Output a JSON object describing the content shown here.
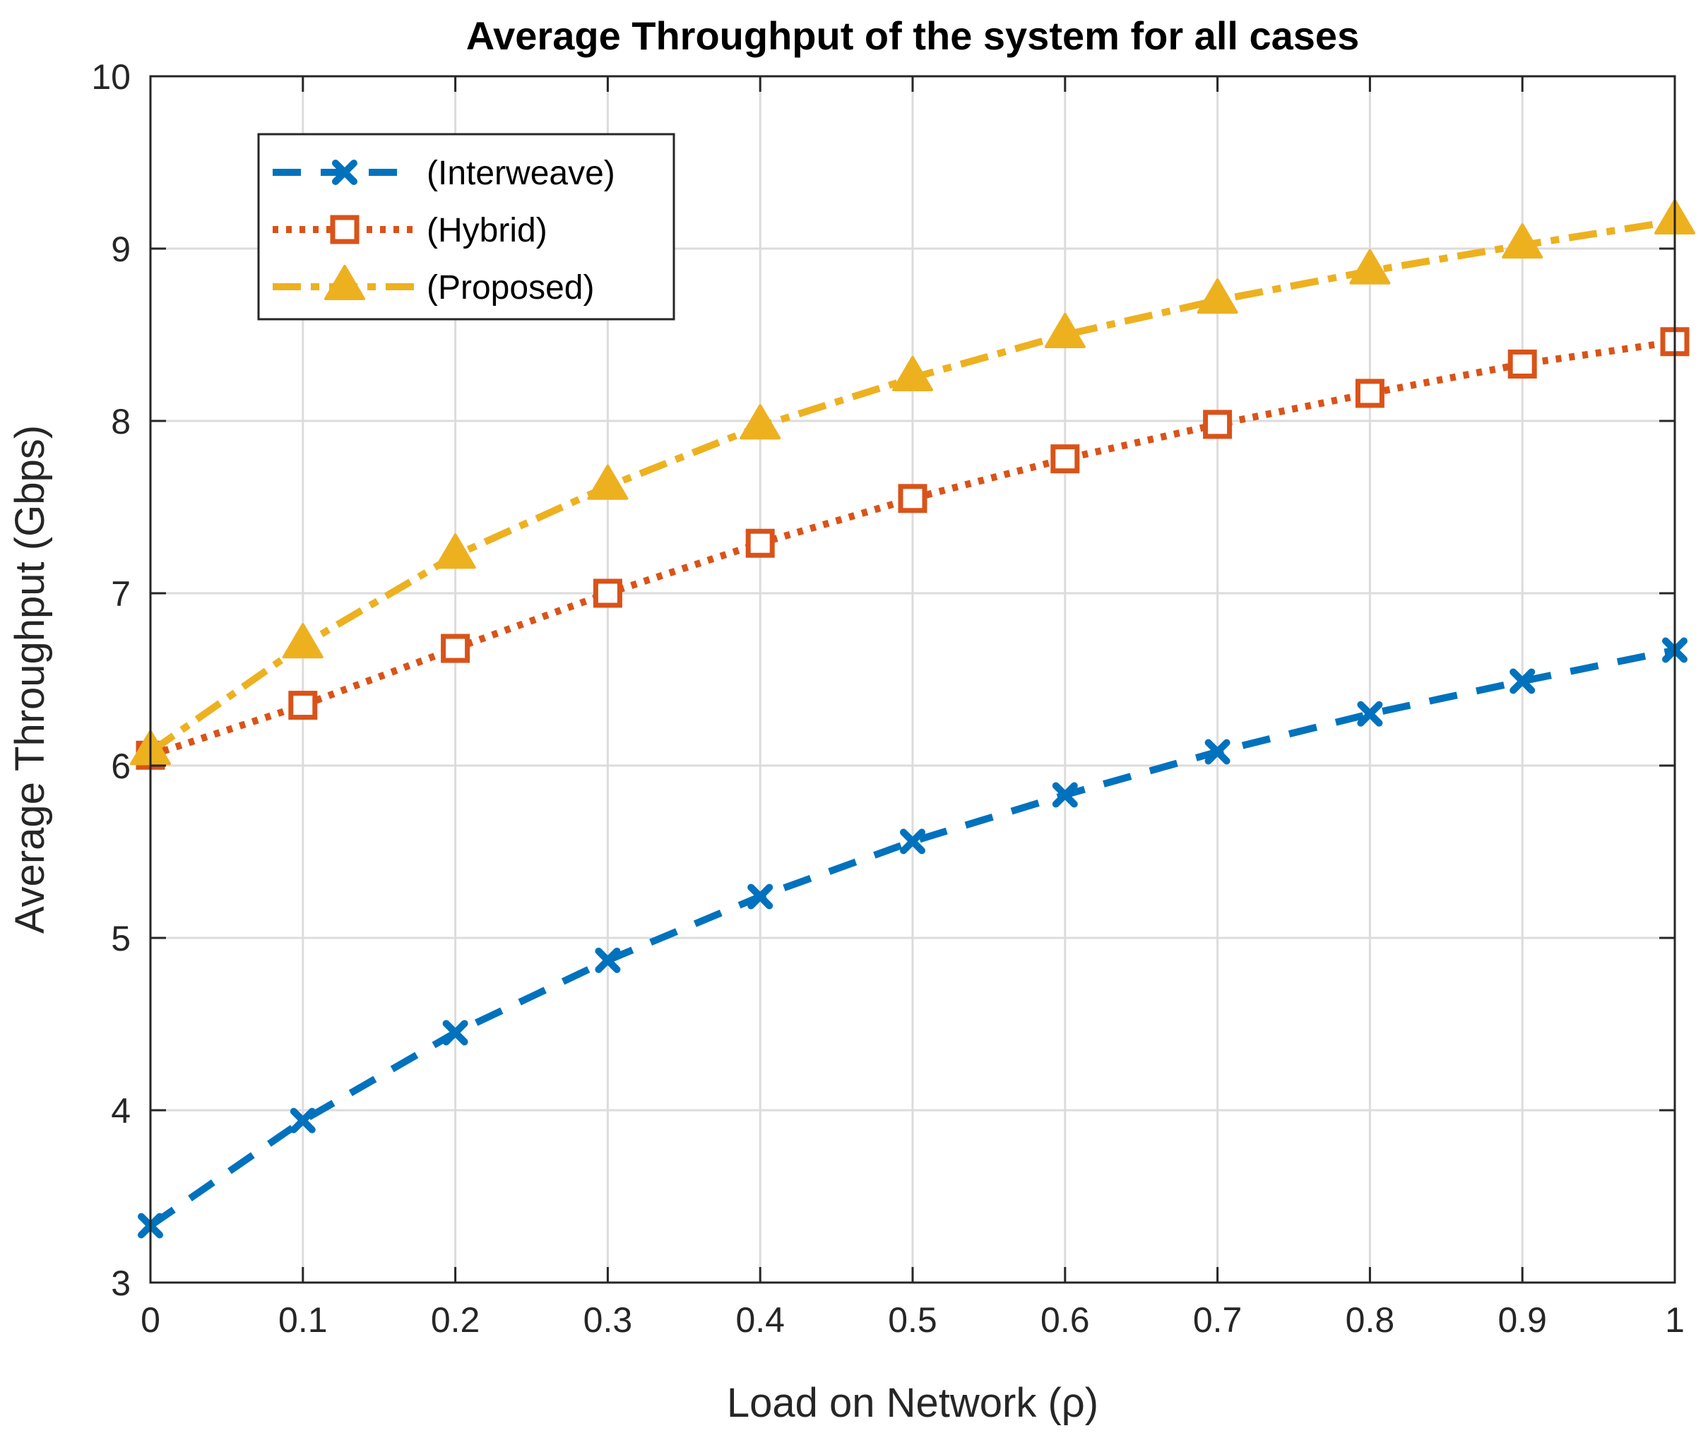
{
  "chart_data": {
    "type": "line",
    "title": "Average Throughput of the system for all cases",
    "xlabel": "Load on Network (ρ)",
    "ylabel": "Average Throughput (Gbps)",
    "xlim": [
      0,
      1
    ],
    "ylim": [
      3,
      10
    ],
    "grid": true,
    "legend_position": "top-left",
    "x": [
      0,
      0.1,
      0.2,
      0.3,
      0.4,
      0.5,
      0.6,
      0.7,
      0.8,
      0.9,
      1
    ],
    "x_tick_labels": [
      "0",
      "0.1",
      "0.2",
      "0.3",
      "0.4",
      "0.5",
      "0.6",
      "0.7",
      "0.8",
      "0.9",
      "1"
    ],
    "y_tick_labels": [
      "3",
      "4",
      "5",
      "6",
      "7",
      "8",
      "9",
      "10"
    ],
    "series": [
      {
        "name": "(Interweave)",
        "color": "#0072BD",
        "line_style": "dashed",
        "marker": "x",
        "values": [
          3.33,
          3.94,
          4.45,
          4.87,
          5.24,
          5.56,
          5.83,
          6.08,
          6.3,
          6.49,
          6.67
        ]
      },
      {
        "name": "(Hybrid)",
        "color": "#D95319",
        "line_style": "dotted",
        "marker": "square",
        "values": [
          6.06,
          6.35,
          6.68,
          7.0,
          7.29,
          7.55,
          7.78,
          7.98,
          8.16,
          8.33,
          8.46
        ]
      },
      {
        "name": "(Proposed)",
        "color": "#EDB120",
        "line_style": "dash-dot",
        "marker": "triangle",
        "values": [
          6.08,
          6.7,
          7.22,
          7.62,
          7.97,
          8.25,
          8.5,
          8.7,
          8.87,
          9.02,
          9.16
        ]
      }
    ]
  }
}
